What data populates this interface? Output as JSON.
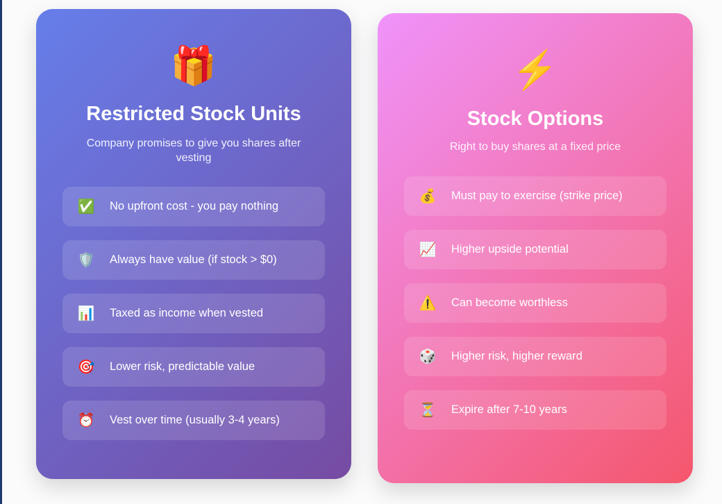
{
  "cards": [
    {
      "icon": "gift-icon",
      "emoji": "🎁",
      "title": "Restricted Stock Units",
      "subtitle": "Company promises to give you shares after vesting",
      "gradient": [
        "#667eea",
        "#764ba2"
      ],
      "items": [
        {
          "icon": "check-mark-icon",
          "emoji": "✅",
          "text": "No upfront cost - you pay nothing"
        },
        {
          "icon": "shield-icon",
          "emoji": "🛡️",
          "text": "Always have value (if stock > $0)"
        },
        {
          "icon": "bar-chart-icon",
          "emoji": "📊",
          "text": "Taxed as income when vested"
        },
        {
          "icon": "target-icon",
          "emoji": "🎯",
          "text": "Lower risk, predictable value"
        },
        {
          "icon": "alarm-clock-icon",
          "emoji": "⏰",
          "text": "Vest over time (usually 3-4 years)"
        }
      ]
    },
    {
      "icon": "lightning-icon",
      "emoji": "⚡",
      "title": "Stock Options",
      "subtitle": "Right to buy shares at a fixed price",
      "gradient": [
        "#f093fb",
        "#f5576c"
      ],
      "items": [
        {
          "icon": "money-bag-icon",
          "emoji": "💰",
          "text": "Must pay to exercise (strike price)"
        },
        {
          "icon": "chart-increasing-icon",
          "emoji": "📈",
          "text": "Higher upside potential"
        },
        {
          "icon": "warning-icon",
          "emoji": "⚠️",
          "text": "Can become worthless"
        },
        {
          "icon": "dice-icon",
          "emoji": "🎲",
          "text": "Higher risk, higher reward"
        },
        {
          "icon": "hourglass-icon",
          "emoji": "⏳",
          "text": "Expire after 7-10 years"
        }
      ]
    }
  ]
}
